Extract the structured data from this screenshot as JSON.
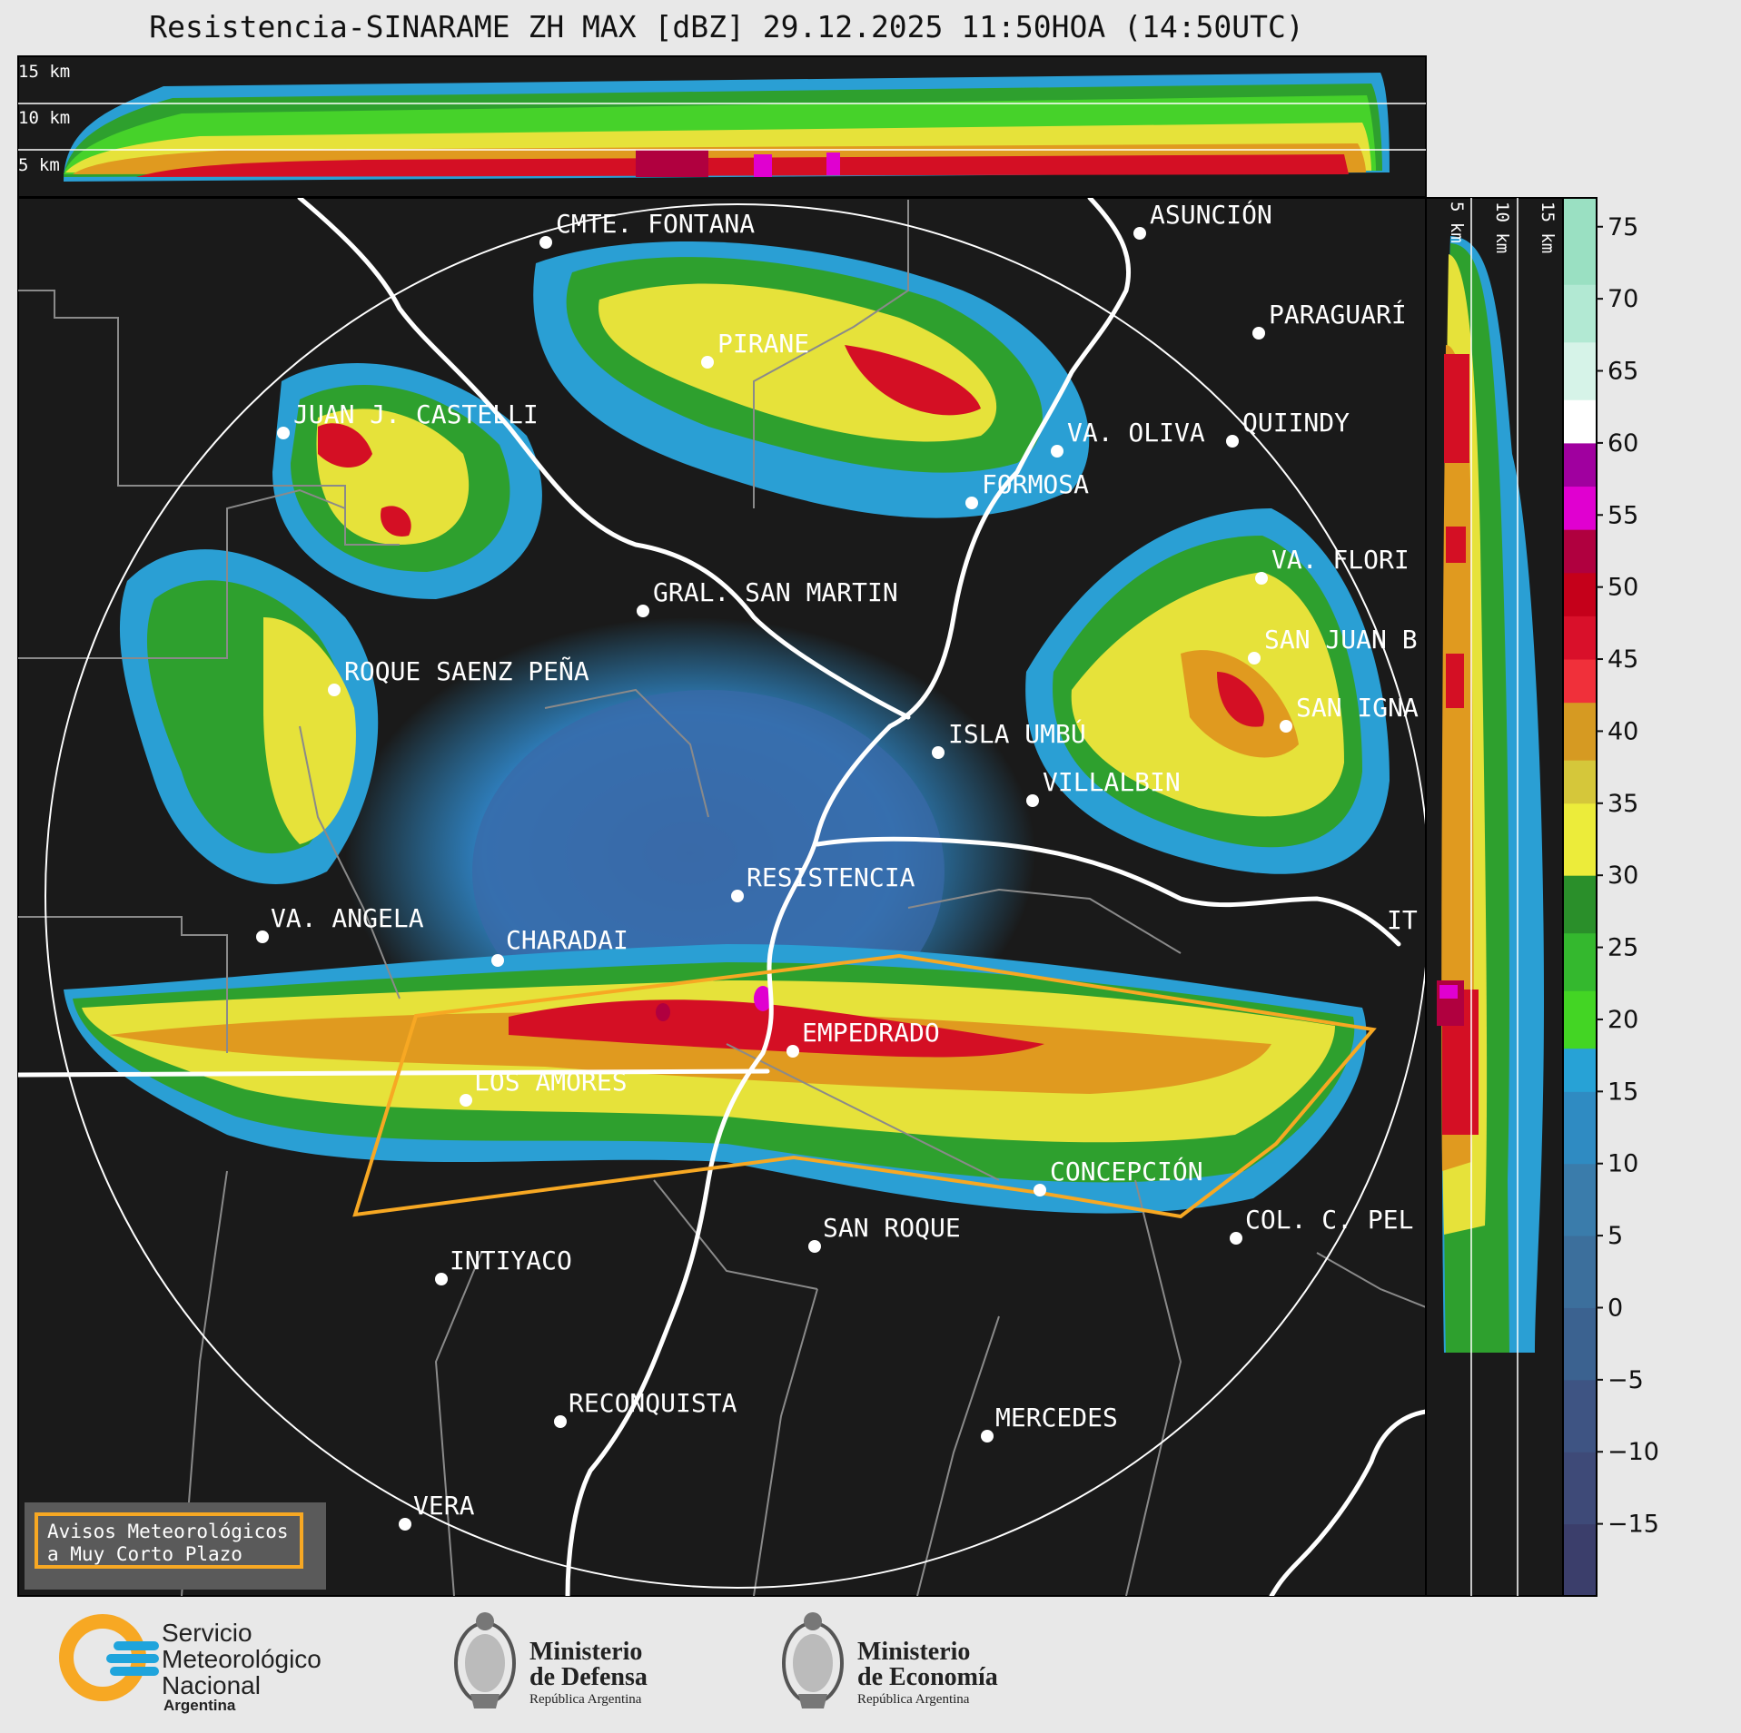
{
  "title": "Resistencia-SINARAME ZH MAX [dBZ] 29.12.2025 11:50HOA (14:50UTC)",
  "top_panel_heights": [
    "15 km",
    "10 km",
    "5 km"
  ],
  "side_panel_heights": [
    "5 km",
    "10 km",
    "15 km"
  ],
  "colorbar": {
    "ticks": [
      "75",
      "70",
      "65",
      "60",
      "55",
      "50",
      "45",
      "40",
      "35",
      "30",
      "25",
      "20",
      "15",
      "10",
      "5",
      "0",
      "−5",
      "−10",
      "−15"
    ],
    "range": [
      -20,
      77
    ]
  },
  "cities": [
    {
      "name": "CMTE. FONTANA"
    },
    {
      "name": "ASUNCIÓN"
    },
    {
      "name": "PARAGUARÍ"
    },
    {
      "name": "PIRANE"
    },
    {
      "name": "JUAN J. CASTELLI"
    },
    {
      "name": "VA. OLIVA"
    },
    {
      "name": "QUIINDY"
    },
    {
      "name": "FORMOSA"
    },
    {
      "name": "VA. FLORI"
    },
    {
      "name": "GRAL. SAN MARTIN"
    },
    {
      "name": "SAN JUAN B"
    },
    {
      "name": "ROQUE SAENZ PEÑA"
    },
    {
      "name": "SAN IGNA"
    },
    {
      "name": "ISLA UMBÚ"
    },
    {
      "name": "VILLALBIN"
    },
    {
      "name": "RESISTENCIA"
    },
    {
      "name": "IT"
    },
    {
      "name": "VA. ANGELA"
    },
    {
      "name": "CHARADAI"
    },
    {
      "name": "EMPEDRADO"
    },
    {
      "name": "LOS AMORES"
    },
    {
      "name": "CONCEPCIÓN"
    },
    {
      "name": "SAN ROQUE"
    },
    {
      "name": "COL. C. PEL"
    },
    {
      "name": "INTIYACO"
    },
    {
      "name": "RECONQUISTA"
    },
    {
      "name": "MERCEDES"
    },
    {
      "name": "VERA"
    }
  ],
  "warning_box": {
    "line1": "Avisos Meteorológicos",
    "line2": "a Muy Corto Plazo",
    "color": "#f7a823"
  },
  "logos": {
    "smn": {
      "line1": "Servicio",
      "line2": "Meteorológico",
      "line3": "Nacional",
      "line4": "Argentina"
    },
    "defensa": {
      "line1": "Ministerio",
      "line2": "de Defensa",
      "line3": "República Argentina"
    },
    "economia": {
      "line1": "Ministerio",
      "line2": "de Economía",
      "line3": "República Argentina"
    }
  }
}
